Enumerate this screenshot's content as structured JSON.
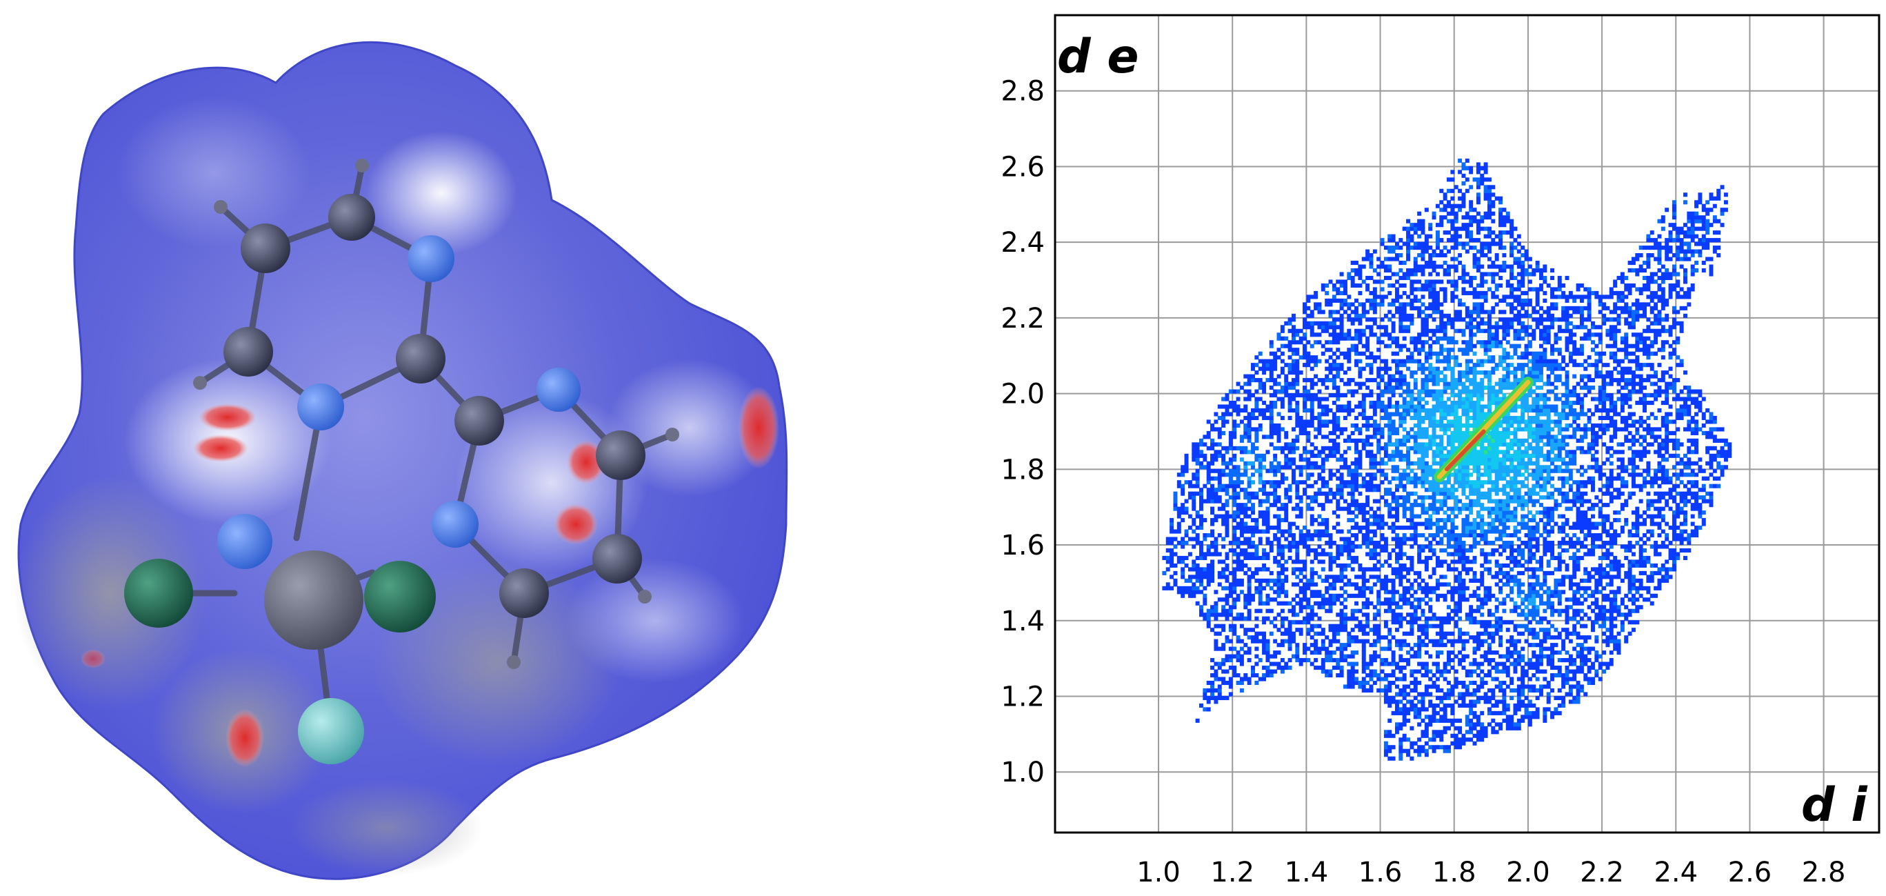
{
  "panels": {
    "surface": {
      "colors": {
        "surface_blue": "#4c52d6",
        "surface_white": "#f4f5fb",
        "contact_red": "#e02a2a",
        "carbon": "#3a3e55",
        "nitrogen": "#3d6fe0",
        "chlorine": "#1f6b53",
        "fluorine": "#6fc4c6",
        "metal": "#5b5e6e"
      }
    },
    "fingerprint": {
      "colors": {
        "points_low": "#0a3bff",
        "points_mid": "#18a6ff",
        "points_high": "#2fe08a",
        "points_peak": "#e8c030",
        "grid": "#9a9a9a",
        "frame": "#000000"
      }
    }
  },
  "chart_data": {
    "type": "heatmap",
    "title": "",
    "xlabel": "d i",
    "ylabel": "d e",
    "xlim": [
      0.72,
      2.95
    ],
    "ylim": [
      0.84,
      3.0
    ],
    "x_ticks": [
      "1.0",
      "1.2",
      "1.4",
      "1.6",
      "1.8",
      "2.0",
      "2.2",
      "2.4",
      "2.6",
      "2.8"
    ],
    "y_ticks": [
      "1.0",
      "1.2",
      "1.4",
      "1.6",
      "1.8",
      "2.0",
      "2.2",
      "2.4",
      "2.6",
      "2.8"
    ],
    "grid": true,
    "cell_size": 0.01,
    "regions": [
      {
        "name": "main-body",
        "polygon": [
          [
            1.0,
            1.48
          ],
          [
            1.05,
            1.8
          ],
          [
            1.18,
            2.0
          ],
          [
            1.4,
            2.25
          ],
          [
            1.6,
            2.4
          ],
          [
            1.8,
            2.55
          ],
          [
            1.88,
            2.6
          ],
          [
            2.0,
            2.35
          ],
          [
            2.2,
            2.25
          ],
          [
            2.35,
            2.45
          ],
          [
            2.5,
            2.52
          ],
          [
            2.4,
            2.1
          ],
          [
            2.55,
            1.85
          ],
          [
            2.45,
            1.6
          ],
          [
            2.3,
            1.4
          ],
          [
            2.2,
            1.25
          ],
          [
            2.1,
            1.15
          ],
          [
            1.95,
            1.1
          ],
          [
            1.8,
            1.05
          ],
          [
            1.65,
            1.02
          ],
          [
            1.6,
            1.2
          ],
          [
            1.5,
            1.22
          ],
          [
            1.4,
            1.28
          ],
          [
            1.3,
            1.25
          ],
          [
            1.2,
            1.2
          ],
          [
            1.1,
            1.13
          ],
          [
            1.15,
            1.35
          ],
          [
            1.08,
            1.45
          ]
        ],
        "density": 0.5
      },
      {
        "name": "upper-spike",
        "polygon": [
          [
            1.72,
            2.45
          ],
          [
            1.8,
            2.62
          ],
          [
            1.86,
            2.6
          ],
          [
            1.9,
            2.4
          ]
        ],
        "density": 0.35
      },
      {
        "name": "right-spike",
        "polygon": [
          [
            2.3,
            2.3
          ],
          [
            2.38,
            2.52
          ],
          [
            2.55,
            2.55
          ],
          [
            2.5,
            2.3
          ]
        ],
        "density": 0.3
      },
      {
        "name": "lower-spike",
        "polygon": [
          [
            1.6,
            1.02
          ],
          [
            1.7,
            1.05
          ],
          [
            1.75,
            1.25
          ],
          [
            1.62,
            1.2
          ]
        ],
        "density": 0.45
      },
      {
        "name": "left-lobe",
        "polygon": [
          [
            1.0,
            1.48
          ],
          [
            1.06,
            1.48
          ],
          [
            1.2,
            1.62
          ],
          [
            1.1,
            1.8
          ],
          [
            1.02,
            1.65
          ]
        ],
        "density": 0.45
      }
    ],
    "hotspots": [
      {
        "x": 1.87,
        "y": 1.87,
        "radius": 0.33,
        "weight": 0.7
      },
      {
        "x": 1.25,
        "y": 1.8,
        "radius": 0.12,
        "weight": 0.25
      },
      {
        "x": 2.0,
        "y": 1.45,
        "radius": 0.12,
        "weight": 0.25
      }
    ],
    "peak_ridge": {
      "from": [
        1.76,
        1.78
      ],
      "to": [
        2.0,
        2.03
      ],
      "label": ""
    }
  }
}
